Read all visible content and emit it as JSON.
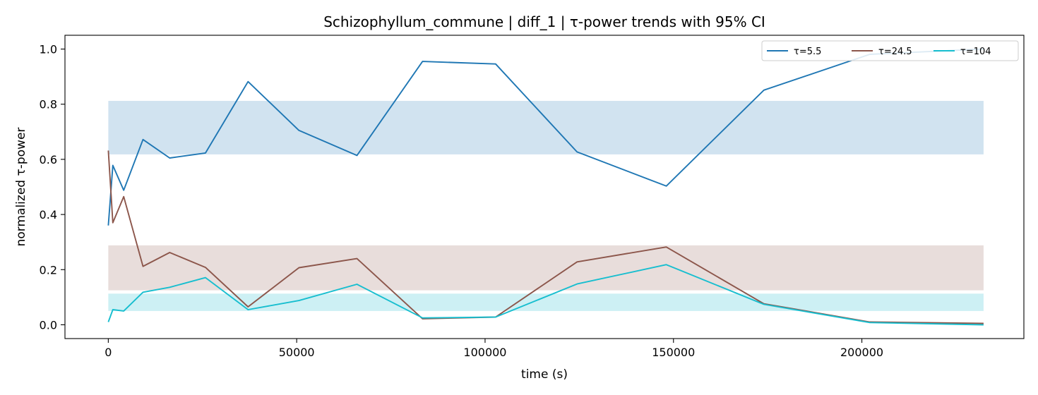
{
  "chart_data": {
    "type": "line",
    "title": "Schizophyllum_commune | diff_1 | τ-power trends with 95% CI",
    "xlabel": "time (s)",
    "ylabel": "normalized τ-power",
    "xlim": [
      -11500,
      243000
    ],
    "ylim": [
      -0.05,
      1.05
    ],
    "xticks": [
      0,
      50000,
      100000,
      150000,
      200000
    ],
    "xtick_labels": [
      "0",
      "50000",
      "100000",
      "150000",
      "200000"
    ],
    "yticks": [
      0.0,
      0.2,
      0.4,
      0.6,
      0.8,
      1.0
    ],
    "ytick_labels": [
      "0.0",
      "0.2",
      "0.4",
      "0.6",
      "0.8",
      "1.0"
    ],
    "grid": false,
    "legend_position": "top-right",
    "x": [
      0,
      1200,
      4100,
      9200,
      16300,
      25800,
      37100,
      50600,
      66000,
      83400,
      102800,
      124400,
      148100,
      174000,
      202100,
      232300
    ],
    "series": [
      {
        "name": "τ=5.5",
        "color": "#1f77b4",
        "values": [
          0.36,
          0.578,
          0.488,
          0.672,
          0.605,
          0.623,
          0.882,
          0.705,
          0.614,
          0.955,
          0.946,
          0.627,
          0.503,
          0.851,
          0.981,
          1.0
        ],
        "ci": [
          0.618,
          0.812
        ],
        "ci_color": "#d1e3f0"
      },
      {
        "name": "τ=24.5",
        "color": "#8c564b",
        "values": [
          0.632,
          0.37,
          0.465,
          0.212,
          0.262,
          0.208,
          0.065,
          0.207,
          0.24,
          0.022,
          0.028,
          0.228,
          0.282,
          0.076,
          0.01,
          0.005
        ],
        "ci": [
          0.125,
          0.288
        ],
        "ci_color": "#e8dddb"
      },
      {
        "name": "τ=104",
        "color": "#17becf",
        "values": [
          0.01,
          0.055,
          0.05,
          0.118,
          0.136,
          0.171,
          0.055,
          0.088,
          0.147,
          0.025,
          0.028,
          0.148,
          0.218,
          0.074,
          0.008,
          0.0
        ],
        "ci": [
          0.05,
          0.113
        ],
        "ci_color": "#cdf0f4"
      }
    ]
  }
}
